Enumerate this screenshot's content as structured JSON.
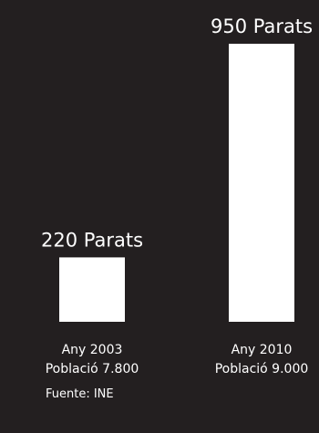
{
  "chart_data": {
    "type": "bar",
    "categories": [
      "Any 2003",
      "Any 2010"
    ],
    "category_sublabels": [
      "Població 7.800",
      "Població 9.000"
    ],
    "values": [
      220,
      950
    ],
    "value_labels": [
      "220 Parats",
      "950 Parats"
    ],
    "ylim": [
      0,
      950
    ],
    "grid": false,
    "title": "",
    "xlabel": "",
    "ylabel": ""
  },
  "source": "Fuente: INE",
  "colors": {
    "background": "#231f20",
    "bar": "#ffffff",
    "text": "#ffffff"
  }
}
